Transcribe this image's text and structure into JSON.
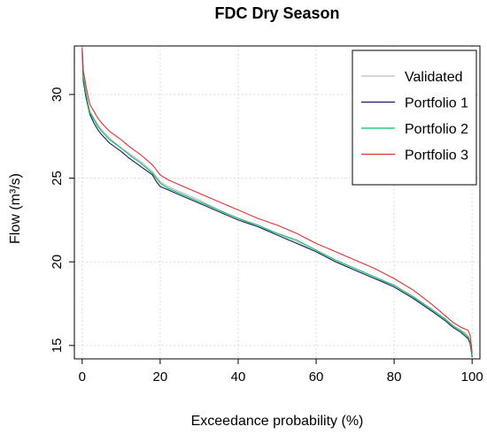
{
  "chart_data": {
    "type": "line",
    "title": "FDC Dry Season",
    "xlabel": "Exceedance probability (%)",
    "ylabel": "Flow (m³/s)",
    "xlim": [
      -2,
      102
    ],
    "ylim": [
      14.2,
      32.9
    ],
    "xticks": [
      0,
      20,
      40,
      60,
      80,
      100
    ],
    "yticks": [
      15,
      20,
      25,
      30
    ],
    "grid": true,
    "legend_position": "top-right",
    "series": [
      {
        "name": "Validated",
        "color": "#bdbdbd",
        "x": [
          0,
          0.3,
          0.7,
          1,
          1.5,
          2,
          3,
          4,
          5,
          7,
          10,
          12,
          15,
          18,
          19,
          20,
          22,
          25,
          30,
          35,
          40,
          45,
          50,
          55,
          60,
          65,
          70,
          75,
          80,
          85,
          90,
          93,
          95,
          97,
          98,
          99,
          99.5,
          100
        ],
        "y": [
          32.9,
          31.2,
          30.6,
          30.1,
          29.5,
          29.0,
          28.6,
          28.2,
          27.9,
          27.4,
          26.8,
          26.5,
          26.0,
          25.4,
          25.1,
          24.8,
          24.5,
          24.2,
          23.7,
          23.1,
          22.6,
          22.1,
          21.7,
          21.2,
          20.6,
          20.0,
          19.5,
          19.0,
          18.6,
          17.9,
          17.1,
          16.6,
          16.2,
          15.9,
          15.8,
          15.6,
          15.2,
          14.5
        ]
      },
      {
        "name": "Portfolio 1",
        "color": "#1a1a5e",
        "x": [
          0,
          0.3,
          0.7,
          1,
          1.5,
          2,
          3,
          4,
          5,
          7,
          10,
          12,
          15,
          18,
          19,
          20,
          22,
          25,
          30,
          35,
          40,
          45,
          50,
          55,
          60,
          65,
          70,
          75,
          80,
          85,
          90,
          93,
          95,
          97,
          98,
          99,
          99.5,
          100
        ],
        "y": [
          32.6,
          30.8,
          30.2,
          29.8,
          29.3,
          28.8,
          28.3,
          27.9,
          27.6,
          27.1,
          26.6,
          26.2,
          25.7,
          25.2,
          24.8,
          24.5,
          24.3,
          24.0,
          23.5,
          23.0,
          22.5,
          22.1,
          21.6,
          21.1,
          20.6,
          20.0,
          19.5,
          19.0,
          18.5,
          17.8,
          17.0,
          16.5,
          16.1,
          15.8,
          15.6,
          15.4,
          15.1,
          14.3
        ]
      },
      {
        "name": "Portfolio 2",
        "color": "#00c060",
        "x": [
          0,
          0.3,
          0.7,
          1,
          1.5,
          2,
          3,
          4,
          5,
          7,
          10,
          12,
          15,
          18,
          19,
          20,
          22,
          25,
          30,
          35,
          40,
          45,
          50,
          55,
          60,
          65,
          70,
          75,
          80,
          85,
          90,
          93,
          95,
          97,
          98,
          99,
          99.5,
          100
        ],
        "y": [
          32.7,
          31.0,
          30.4,
          30.0,
          29.4,
          28.9,
          28.5,
          28.1,
          27.8,
          27.3,
          26.8,
          26.4,
          25.9,
          25.3,
          25.0,
          24.7,
          24.4,
          24.1,
          23.6,
          23.1,
          22.6,
          22.2,
          21.7,
          21.3,
          20.7,
          20.1,
          19.6,
          19.1,
          18.6,
          17.9,
          17.1,
          16.6,
          16.2,
          15.9,
          15.7,
          15.5,
          15.2,
          14.4
        ]
      },
      {
        "name": "Portfolio 3",
        "color": "#e03030",
        "x": [
          0,
          0.3,
          0.7,
          1,
          1.5,
          2,
          3,
          4,
          5,
          7,
          10,
          12,
          15,
          18,
          19,
          20,
          22,
          25,
          30,
          35,
          40,
          45,
          50,
          55,
          60,
          65,
          70,
          75,
          80,
          85,
          90,
          93,
          95,
          97,
          98,
          99,
          99.5,
          100
        ],
        "y": [
          32.8,
          31.4,
          30.9,
          30.5,
          29.9,
          29.4,
          29.0,
          28.6,
          28.3,
          27.8,
          27.3,
          26.9,
          26.4,
          25.8,
          25.5,
          25.2,
          24.9,
          24.6,
          24.1,
          23.6,
          23.1,
          22.6,
          22.2,
          21.7,
          21.1,
          20.6,
          20.1,
          19.6,
          19.0,
          18.3,
          17.4,
          16.8,
          16.4,
          16.1,
          16.0,
          15.9,
          15.6,
          14.6
        ]
      }
    ]
  }
}
